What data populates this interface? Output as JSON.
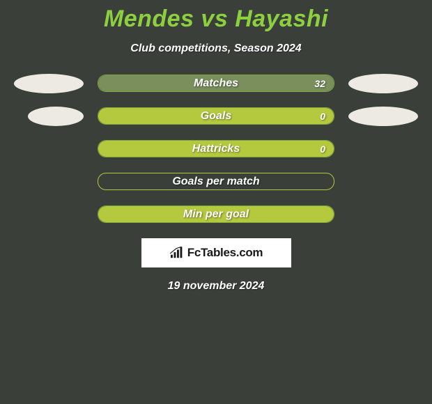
{
  "title": "Mendes vs Hayashi",
  "subtitle": "Club competitions, Season 2024",
  "colors": {
    "background": "#3a3f3a",
    "title": "#8dd03f",
    "subtitle": "#ffffff",
    "ellipse": "#eceae3",
    "pill_matches": "#7a8f5c",
    "pill_goals": "#b5c93f",
    "pill_hattricks": "#b5c93f",
    "pill_gpm": "#b5c93f",
    "pill_mpg": "#b5c93f",
    "pill_border_green": "#7aa63a",
    "pill_text": "#ffffff",
    "logo_bg": "#ffffff",
    "logo_text": "#1a1a1a"
  },
  "stats": [
    {
      "label": "Matches",
      "value": "32",
      "show_left_ellipse": true,
      "show_right_ellipse": true,
      "left_ellipse_width": 100,
      "fill_color": "#7a8f5c",
      "fill_width_pct": 100,
      "border_color": "#7aa63a"
    },
    {
      "label": "Goals",
      "value": "0",
      "show_left_ellipse": true,
      "show_right_ellipse": true,
      "left_ellipse_width": 80,
      "fill_color": "#b5c93f",
      "fill_width_pct": 100,
      "border_color": "#7aa63a"
    },
    {
      "label": "Hattricks",
      "value": "0",
      "show_left_ellipse": false,
      "show_right_ellipse": false,
      "fill_color": "#b5c93f",
      "fill_width_pct": 100,
      "border_color": "#7aa63a"
    },
    {
      "label": "Goals per match",
      "value": "",
      "show_left_ellipse": false,
      "show_right_ellipse": false,
      "fill_color": "transparent",
      "fill_width_pct": 0,
      "border_color": "#b5c93f"
    },
    {
      "label": "Min per goal",
      "value": "",
      "show_left_ellipse": false,
      "show_right_ellipse": false,
      "fill_color": "#b5c93f",
      "fill_width_pct": 100,
      "border_color": "#7aa63a"
    }
  ],
  "logo": {
    "text": "FcTables.com"
  },
  "footer_date": "19 november 2024",
  "typography": {
    "title_fontsize": 34,
    "subtitle_fontsize": 16,
    "stat_label_fontsize": 16,
    "stat_value_fontsize": 14,
    "logo_fontsize": 17,
    "footer_fontsize": 16
  }
}
